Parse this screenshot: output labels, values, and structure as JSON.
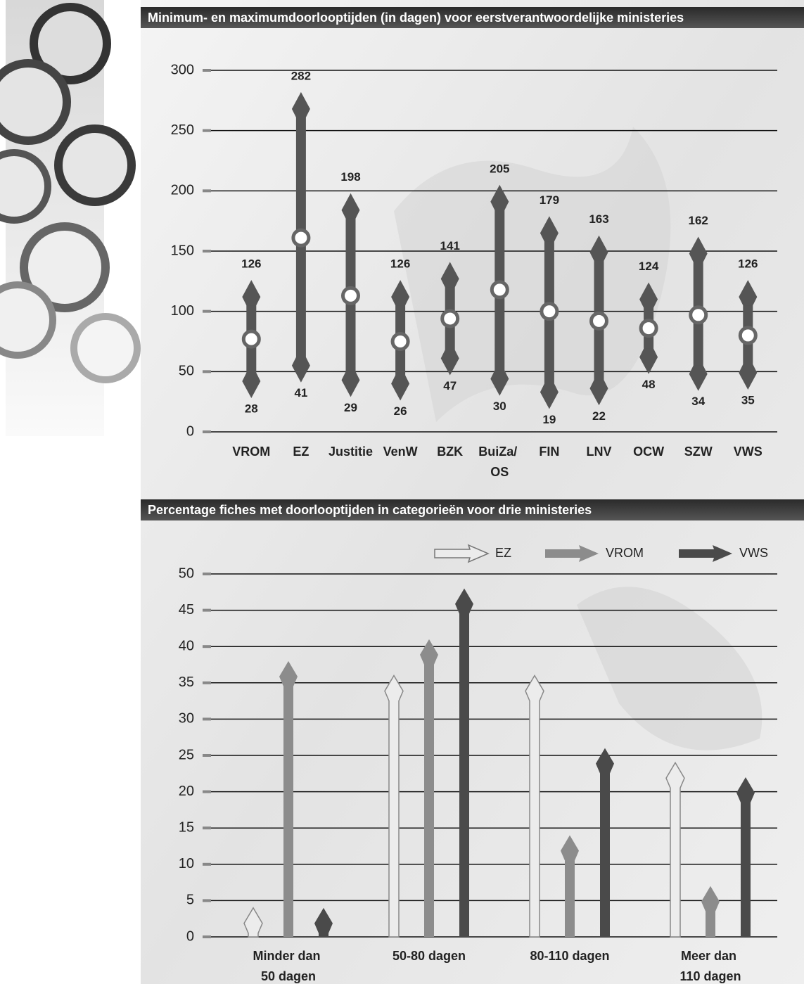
{
  "chart_data": [
    {
      "type": "range",
      "title": "Minimum- en maximumdoorlooptijden (in dagen) voor eerstverantwoordelijke ministeries",
      "categories": [
        "VROM",
        "EZ",
        "Justitie",
        "VenW",
        "BZK",
        "BuiZa/ OS",
        "FIN",
        "LNV",
        "OCW",
        "SZW",
        "VWS"
      ],
      "max": [
        126,
        282,
        198,
        126,
        141,
        205,
        179,
        163,
        124,
        162,
        126
      ],
      "min": [
        28,
        41,
        29,
        26,
        47,
        30,
        19,
        22,
        48,
        34,
        35
      ],
      "mean": [
        77,
        161,
        113,
        75,
        94,
        118,
        100,
        92,
        86,
        97,
        80
      ],
      "color": "#555555",
      "ylim": [
        0,
        300
      ],
      "yticks": [
        0,
        50,
        100,
        150,
        200,
        250,
        300
      ],
      "grid": true
    },
    {
      "type": "bar",
      "title": "Percentage fiches met doorlooptijden in categorieën voor drie ministeries",
      "categories": [
        "Minder dan 50 dagen",
        "50-80 dagen",
        "80-110 dagen",
        "Meer dan 110 dagen"
      ],
      "series": [
        {
          "name": "EZ",
          "color": "#ececec",
          "values": [
            4,
            36,
            36,
            24
          ]
        },
        {
          "name": "VROM",
          "color": "#8c8c8c",
          "values": [
            38,
            41,
            14,
            7
          ]
        },
        {
          "name": "VWS",
          "color": "#4a4a4a",
          "values": [
            4,
            48,
            26,
            22
          ]
        }
      ],
      "ylim": [
        0,
        50
      ],
      "yticks": [
        0,
        5,
        10,
        15,
        20,
        25,
        30,
        35,
        40,
        45,
        50
      ],
      "grid": true,
      "legend": "top-right"
    }
  ]
}
